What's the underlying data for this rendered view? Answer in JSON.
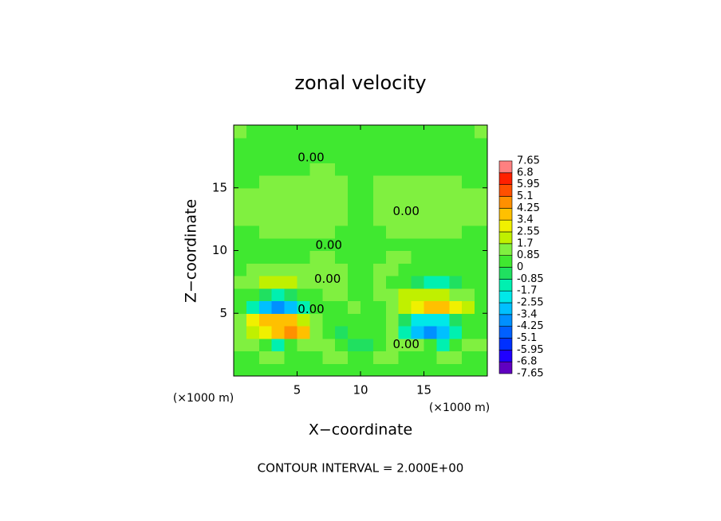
{
  "chart_data": {
    "type": "contour",
    "title": "zonal velocity",
    "xlabel": "X−coordinate",
    "ylabel": "Z−coordinate",
    "xunit": "(×1000 m)",
    "yunit": "(×1000 m)",
    "footer": "CONTOUR INTERVAL = 2.000E+00",
    "xlim": [
      0,
      20
    ],
    "ylim": [
      0,
      20
    ],
    "xticks": [
      5,
      10,
      15
    ],
    "yticks": [
      5,
      10,
      15
    ],
    "x": [
      0.5,
      1.5,
      2.5,
      3.5,
      4.5,
      5.5,
      6.5,
      7.5,
      8.5,
      9.5,
      10.5,
      11.5,
      12.5,
      13.5,
      14.5,
      15.5,
      16.5,
      17.5,
      18.5,
      19.5
    ],
    "y": [
      0.5,
      1.5,
      2.5,
      3.5,
      4.5,
      5.5,
      6.5,
      7.5,
      8.5,
      9.5,
      10.5,
      11.5,
      12.5,
      13.5,
      14.5,
      15.5,
      16.5,
      17.5,
      18.5,
      19.5
    ],
    "values": [
      [
        0.6,
        0.6,
        0.7,
        0.7,
        0.6,
        0.5,
        0.5,
        0.6,
        0.8,
        0.3,
        0.3,
        0.8,
        0.6,
        0.5,
        0.5,
        0.6,
        0.7,
        0.7,
        0.6,
        0.6
      ],
      [
        0.7,
        0.8,
        0.9,
        0.9,
        0.8,
        0.6,
        0.6,
        0.9,
        1.1,
        0.2,
        0.2,
        1.1,
        0.9,
        0.6,
        0.6,
        0.8,
        0.9,
        0.9,
        0.8,
        0.7
      ],
      [
        1.0,
        1.2,
        0.8,
        -0.9,
        0.5,
        1.0,
        0.9,
        1.3,
        0.6,
        -0.4,
        -0.4,
        0.6,
        1.3,
        0.9,
        1.0,
        0.5,
        -0.9,
        0.8,
        1.2,
        1.0
      ],
      [
        1.2,
        2.0,
        3.0,
        4.2,
        4.5,
        3.5,
        1.5,
        0.8,
        -0.5,
        0.8,
        0.8,
        0.5,
        1.5,
        -1.0,
        -3.0,
        -3.5,
        -3.0,
        -1.5,
        0.5,
        0.8
      ],
      [
        1.5,
        2.8,
        3.5,
        4.0,
        3.6,
        2.5,
        1.2,
        0.5,
        0.3,
        0.5,
        0.5,
        0.3,
        1.0,
        -0.5,
        -2.0,
        -2.5,
        -2.0,
        -0.8,
        0.5,
        0.8
      ],
      [
        0.5,
        -1.0,
        -2.8,
        -3.5,
        -3.0,
        -1.5,
        0.3,
        0.8,
        0.6,
        0.9,
        0.6,
        0.8,
        1.2,
        2.0,
        3.2,
        3.8,
        4.0,
        3.0,
        1.8,
        0.8
      ],
      [
        0.8,
        0.5,
        -0.6,
        -1.0,
        -0.8,
        0.3,
        0.8,
        1.0,
        0.9,
        0.6,
        0.6,
        1.0,
        1.2,
        1.8,
        2.0,
        2.2,
        1.8,
        1.2,
        0.9,
        0.7
      ],
      [
        0.9,
        1.5,
        2.0,
        2.2,
        1.8,
        1.2,
        1.0,
        1.2,
        0.9,
        0.5,
        0.5,
        0.9,
        0.6,
        0.3,
        -0.3,
        -1.0,
        -1.2,
        -0.8,
        0.3,
        0.7
      ],
      [
        0.8,
        1.0,
        1.2,
        1.3,
        1.1,
        0.9,
        1.1,
        1.4,
        1.0,
        0.6,
        0.6,
        1.0,
        1.3,
        0.8,
        0.5,
        0.2,
        0.3,
        0.5,
        0.8,
        0.8
      ],
      [
        0.6,
        0.7,
        0.8,
        0.8,
        0.7,
        0.8,
        1.0,
        1.1,
        0.8,
        0.5,
        0.5,
        0.8,
        1.1,
        1.0,
        0.8,
        0.7,
        0.8,
        0.8,
        0.7,
        0.6
      ],
      [
        0.5,
        0.5,
        0.6,
        0.6,
        0.6,
        0.7,
        0.8,
        0.8,
        0.6,
        0.5,
        0.5,
        0.6,
        0.8,
        0.8,
        0.7,
        0.6,
        0.6,
        0.6,
        0.5,
        0.5
      ],
      [
        0.7,
        0.8,
        0.9,
        1.0,
        1.0,
        1.0,
        1.0,
        0.9,
        0.8,
        0.7,
        0.7,
        0.8,
        0.9,
        1.0,
        1.0,
        1.0,
        1.0,
        0.9,
        0.8,
        0.7
      ],
      [
        0.9,
        1.0,
        1.1,
        1.1,
        1.1,
        1.0,
        1.0,
        1.0,
        0.9,
        0.8,
        0.8,
        0.9,
        1.0,
        1.0,
        1.0,
        1.1,
        1.1,
        1.1,
        1.0,
        0.9
      ],
      [
        1.0,
        1.1,
        1.2,
        1.2,
        1.1,
        1.0,
        1.0,
        1.0,
        0.9,
        0.8,
        0.8,
        0.9,
        1.0,
        1.0,
        1.0,
        1.1,
        1.2,
        1.2,
        1.1,
        1.0
      ],
      [
        0.9,
        1.0,
        1.1,
        1.1,
        1.0,
        1.0,
        1.0,
        1.0,
        0.9,
        0.8,
        0.8,
        0.9,
        1.0,
        1.0,
        1.0,
        1.0,
        1.1,
        1.1,
        1.0,
        0.9
      ],
      [
        0.7,
        0.8,
        0.9,
        0.9,
        0.9,
        1.0,
        1.1,
        1.1,
        1.0,
        0.8,
        0.8,
        0.9,
        1.0,
        1.0,
        0.9,
        0.9,
        0.9,
        0.9,
        0.8,
        0.7
      ],
      [
        0.5,
        0.6,
        0.6,
        0.7,
        0.7,
        0.8,
        0.9,
        0.9,
        0.8,
        0.6,
        0.6,
        0.7,
        0.8,
        0.8,
        0.7,
        0.7,
        0.6,
        0.6,
        0.6,
        0.5
      ],
      [
        0.4,
        0.4,
        0.3,
        0.2,
        0.2,
        0.2,
        0.3,
        0.3,
        0.2,
        0.1,
        0.1,
        0.2,
        0.3,
        0.3,
        0.2,
        0.2,
        0.3,
        0.4,
        0.5,
        0.6
      ],
      [
        0.8,
        0.4,
        0.3,
        0.3,
        0.3,
        0.3,
        0.3,
        0.3,
        0.3,
        0.2,
        0.2,
        0.3,
        0.3,
        0.3,
        0.3,
        0.3,
        0.3,
        0.3,
        0.4,
        0.8
      ],
      [
        1.2,
        0.6,
        0.4,
        0.4,
        0.4,
        0.4,
        0.4,
        0.4,
        0.4,
        0.3,
        0.3,
        0.4,
        0.4,
        0.4,
        0.4,
        0.4,
        0.4,
        0.4,
        0.6,
        1.2
      ]
    ],
    "colorbar": {
      "levels": [
        -7.65,
        -6.8,
        -5.95,
        -5.1,
        -4.25,
        -3.4,
        -2.55,
        -1.7,
        -0.85,
        0,
        0.85,
        1.7,
        2.55,
        3.4,
        4.25,
        5.1,
        5.95,
        6.8,
        7.65
      ],
      "colors": [
        "#6000c0",
        "#2000ff",
        "#0030ff",
        "#0060ff",
        "#0090ff",
        "#00c0ff",
        "#00e8e8",
        "#00f0b0",
        "#20e060",
        "#40e830",
        "#80f040",
        "#c0f000",
        "#f0f000",
        "#ffc000",
        "#ff9000",
        "#ff5000",
        "#ff2000",
        "#ff8080"
      ]
    },
    "contour_labels": [
      {
        "text": "0.00",
        "x": 6.1,
        "y": 17.4
      },
      {
        "text": "0.00",
        "x": 13.6,
        "y": 13.1
      },
      {
        "text": "0.00",
        "x": 7.5,
        "y": 10.4
      },
      {
        "text": "0.00",
        "x": 7.4,
        "y": 7.7
      },
      {
        "text": "0.00",
        "x": 6.1,
        "y": 5.3
      },
      {
        "text": "0.00",
        "x": 13.6,
        "y": 2.5
      }
    ]
  }
}
